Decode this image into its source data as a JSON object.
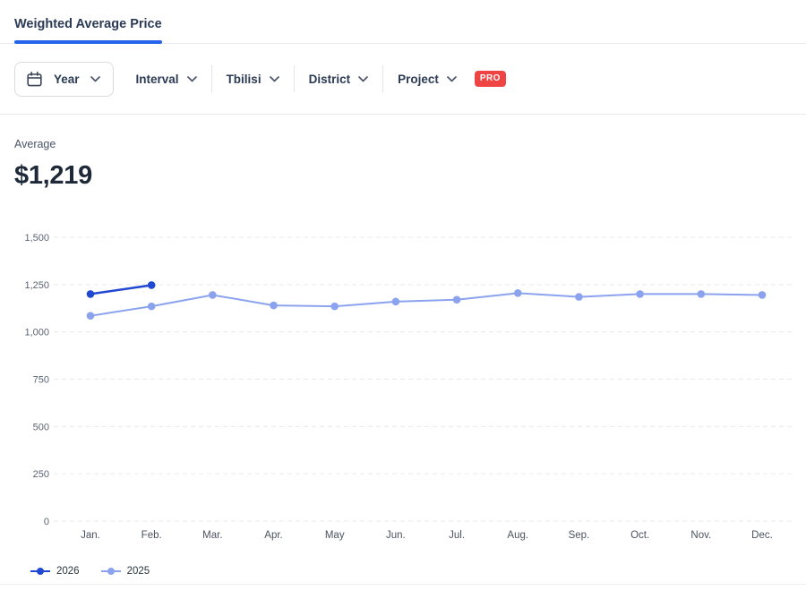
{
  "tabs": {
    "active": "Weighted Average Price"
  },
  "filters": {
    "year_label": "Year",
    "items": [
      {
        "label": "Interval"
      },
      {
        "label": "Tbilisi"
      },
      {
        "label": "District"
      },
      {
        "label": "Project",
        "badge": "PRO"
      }
    ]
  },
  "stats": {
    "label": "Average",
    "value": "$1,219"
  },
  "chart_data": {
    "type": "line",
    "title": "Weighted Average Price",
    "x": [
      "Jan.",
      "Feb.",
      "Mar.",
      "Apr.",
      "May",
      "Jun.",
      "Jul.",
      "Aug.",
      "Sep.",
      "Oct.",
      "Nov.",
      "Dec."
    ],
    "series": [
      {
        "name": "2026",
        "color": "#2148d1",
        "values": [
          1200,
          1247
        ]
      },
      {
        "name": "2025",
        "color": "#8ba3ee",
        "values": [
          1085,
          1135,
          1195,
          1140,
          1135,
          1160,
          1170,
          1205,
          1185,
          1200,
          1200,
          1195
        ]
      }
    ],
    "ylim": [
      0,
      1500
    ],
    "yticks": [
      "0",
      "250",
      "500",
      "750",
      "1,000",
      "1,250",
      "1,500"
    ],
    "ytick_values": [
      0,
      250,
      500,
      750,
      1000,
      1250,
      1500
    ],
    "grid": true,
    "grid_style": "dashed",
    "legend_position": "bottom-left"
  },
  "colors": {
    "accent": "#2563eb",
    "series_2026": "#2148d1",
    "series_2025": "#8ba3ee",
    "pro_badge": "#ef4444",
    "grid": "#e7e9ee",
    "axis_text": "#5a6472"
  }
}
